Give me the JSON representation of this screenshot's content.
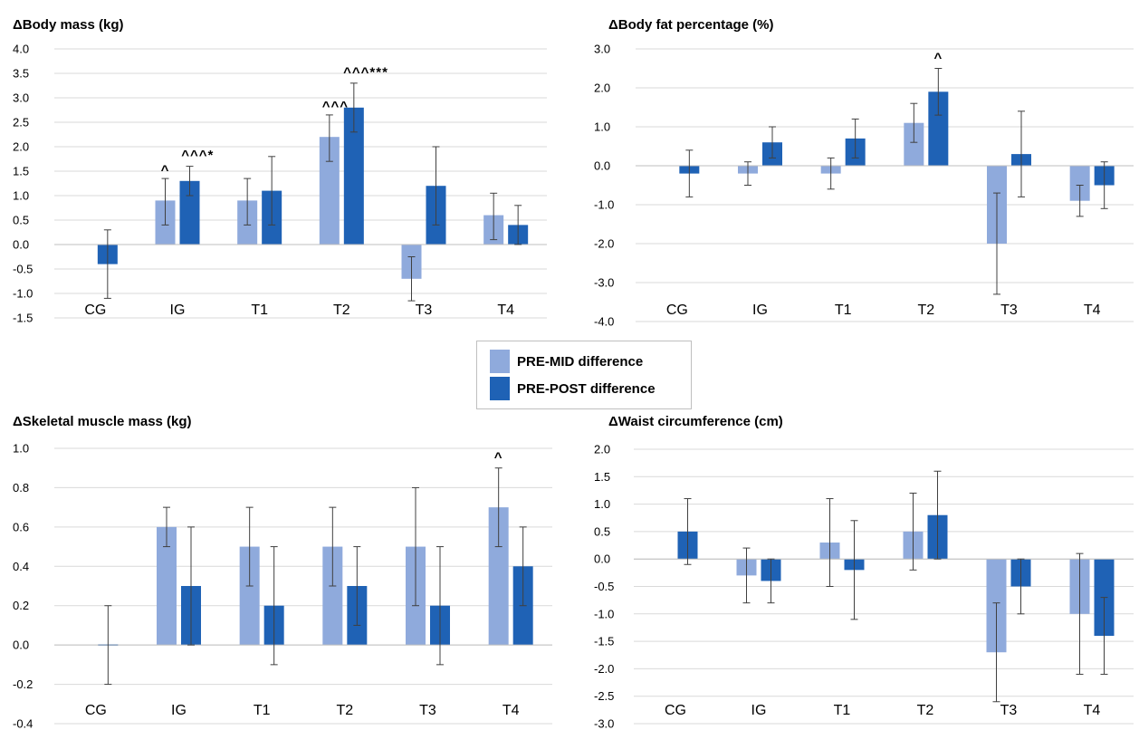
{
  "legend": {
    "entries": [
      {
        "label": "PRE-MID difference",
        "color": "#8faadc"
      },
      {
        "label": "PRE-POST difference",
        "color": "#1f62b5"
      }
    ]
  },
  "colors": {
    "pre_mid": "#8faadc",
    "pre_post": "#1f62b5",
    "grid": "#d9d9d9",
    "error_bar": "#404040"
  },
  "chart_data": [
    {
      "type": "bar",
      "title": "ΔBody mass (kg)",
      "categories": [
        "CG",
        "IG",
        "T1",
        "T2",
        "T3",
        "T4"
      ],
      "ylim": [
        -1.5,
        4.0
      ],
      "yticks": [
        -1.5,
        -1.0,
        -0.5,
        0.0,
        0.5,
        1.0,
        1.5,
        2.0,
        2.5,
        3.0,
        3.5,
        4.0
      ],
      "ytick_decimals": 1,
      "grid": true,
      "legend_position": "center (shared)",
      "series": [
        {
          "name": "PRE-MID difference",
          "values": [
            null,
            0.9,
            0.9,
            2.2,
            -0.7,
            0.6
          ],
          "err_low": [
            null,
            0.4,
            0.4,
            1.7,
            -1.15,
            0.1
          ],
          "err_high": [
            null,
            1.35,
            1.35,
            2.65,
            -0.25,
            1.05
          ]
        },
        {
          "name": "PRE-POST difference",
          "values": [
            -0.4,
            1.3,
            1.1,
            2.8,
            1.2,
            0.4
          ],
          "err_low": [
            -1.1,
            1.0,
            0.4,
            2.3,
            0.4,
            0.0
          ],
          "err_high": [
            0.3,
            1.6,
            1.8,
            3.3,
            2.0,
            0.8
          ]
        }
      ],
      "annotations": [
        {
          "category": "IG",
          "series": 0,
          "text": "^",
          "y": 1.55
        },
        {
          "category": "IG",
          "series": 1,
          "text": "^^^*",
          "y": 1.85
        },
        {
          "category": "T2",
          "series": 0,
          "text": "^^^",
          "y": 2.85
        },
        {
          "category": "T2",
          "series": 1,
          "text": "^^^***",
          "y": 3.55
        }
      ]
    },
    {
      "type": "bar",
      "title": "ΔBody fat percentage (%)",
      "categories": [
        "CG",
        "IG",
        "T1",
        "T2",
        "T3",
        "T4"
      ],
      "ylim": [
        -4.0,
        3.0
      ],
      "yticks": [
        -4.0,
        -3.0,
        -2.0,
        -1.0,
        0.0,
        1.0,
        2.0,
        3.0
      ],
      "ytick_decimals": 1,
      "grid": true,
      "legend_position": "center (shared)",
      "series": [
        {
          "name": "PRE-MID difference",
          "values": [
            null,
            -0.2,
            -0.2,
            1.1,
            -2.0,
            -0.9
          ],
          "err_low": [
            null,
            -0.5,
            -0.6,
            0.6,
            -3.3,
            -1.3
          ],
          "err_high": [
            null,
            0.1,
            0.2,
            1.6,
            -0.7,
            -0.5
          ]
        },
        {
          "name": "PRE-POST difference",
          "values": [
            -0.2,
            0.6,
            0.7,
            1.9,
            0.3,
            -0.5
          ],
          "err_low": [
            -0.8,
            0.2,
            0.2,
            1.3,
            -0.8,
            -1.1
          ],
          "err_high": [
            0.4,
            1.0,
            1.2,
            2.5,
            1.4,
            0.1
          ]
        }
      ],
      "annotations": [
        {
          "category": "T2",
          "series": 1,
          "text": "^",
          "y": 2.8
        }
      ]
    },
    {
      "type": "bar",
      "title": "ΔSkeletal muscle mass (kg)",
      "categories": [
        "CG",
        "IG",
        "T1",
        "T2",
        "T3",
        "T4"
      ],
      "ylim": [
        -0.4,
        1.0
      ],
      "yticks": [
        -0.4,
        -0.2,
        0.0,
        0.2,
        0.4,
        0.6,
        0.8,
        1.0
      ],
      "ytick_decimals": 1,
      "grid": true,
      "legend_position": "center (shared)",
      "series": [
        {
          "name": "PRE-MID difference",
          "values": [
            null,
            0.6,
            0.5,
            0.5,
            0.5,
            0.7
          ],
          "err_low": [
            null,
            0.5,
            0.3,
            0.3,
            0.2,
            0.5
          ],
          "err_high": [
            null,
            0.7,
            0.7,
            0.7,
            0.8,
            0.9
          ]
        },
        {
          "name": "PRE-POST difference",
          "values": [
            0.0,
            0.3,
            0.2,
            0.3,
            0.2,
            0.4
          ],
          "err_low": [
            -0.2,
            0.0,
            -0.1,
            0.1,
            -0.1,
            0.2
          ],
          "err_high": [
            0.2,
            0.6,
            0.5,
            0.5,
            0.5,
            0.6
          ]
        }
      ],
      "annotations": [
        {
          "category": "T4",
          "series": 0,
          "text": "^",
          "y": 0.96
        }
      ]
    },
    {
      "type": "bar",
      "title": "ΔWaist circumference (cm)",
      "categories": [
        "CG",
        "IG",
        "T1",
        "T2",
        "T3",
        "T4"
      ],
      "ylim": [
        -3.0,
        2.0
      ],
      "yticks": [
        -3.0,
        -2.5,
        -2.0,
        -1.5,
        -1.0,
        -0.5,
        0.0,
        0.5,
        1.0,
        1.5,
        2.0
      ],
      "ytick_decimals": 1,
      "grid": true,
      "legend_position": "center (shared)",
      "series": [
        {
          "name": "PRE-MID difference",
          "values": [
            null,
            -0.3,
            0.3,
            0.5,
            -1.7,
            -1.0
          ],
          "err_low": [
            null,
            -0.8,
            -0.5,
            -0.2,
            -2.6,
            -2.1
          ],
          "err_high": [
            null,
            0.2,
            1.1,
            1.2,
            -0.8,
            0.1
          ]
        },
        {
          "name": "PRE-POST difference",
          "values": [
            0.5,
            -0.4,
            -0.2,
            0.8,
            -0.5,
            -1.4
          ],
          "err_low": [
            -0.1,
            -0.8,
            -1.1,
            0.0,
            -1.0,
            -2.1
          ],
          "err_high": [
            1.1,
            0.0,
            0.7,
            1.6,
            0.0,
            -0.7
          ]
        }
      ],
      "annotations": []
    }
  ]
}
